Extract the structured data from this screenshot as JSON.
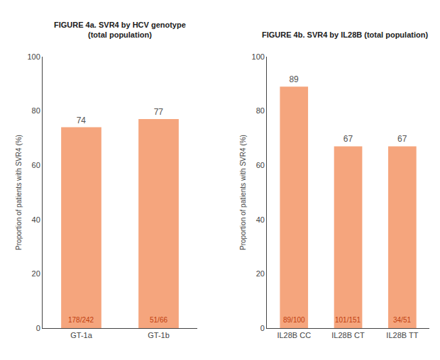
{
  "chart_data": [
    {
      "type": "bar",
      "title": "FIGURE 4a. SVR4 by HCV genotype",
      "subtitle": "(total population)",
      "categories": [
        "GT-1a",
        "GT-1b"
      ],
      "values": [
        74,
        77
      ],
      "annotations": [
        "178/242",
        "51/66"
      ],
      "color": "#F5A57D",
      "ylabel": "Proportion of patients with SVR4 (%)",
      "ylim": [
        0,
        100
      ],
      "yticks": [
        0,
        20,
        40,
        60,
        80,
        100
      ],
      "data_labels": true,
      "grid": false
    },
    {
      "type": "bar",
      "title": "FIGURE 4b. SVR4 by IL28B (total population)",
      "categories": [
        "IL28B CC",
        "IL28B CT",
        "IL28B TT"
      ],
      "values": [
        89,
        67,
        67
      ],
      "annotations": [
        "89/100",
        "101/151",
        "34/51"
      ],
      "color": "#F5A57D",
      "ylabel": "Proportion of patients with SVR4 (%)",
      "ylim": [
        0,
        100
      ],
      "yticks": [
        0,
        20,
        40,
        60,
        80,
        100
      ],
      "data_labels": true,
      "grid": false
    }
  ]
}
